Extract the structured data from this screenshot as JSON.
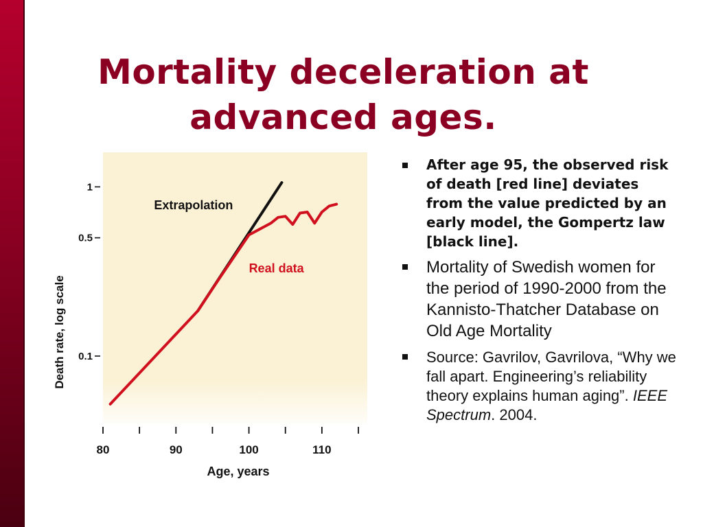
{
  "slide": {
    "title_line1": "Mortality deceleration at",
    "title_line2": "advanced ages.",
    "accent_color": "#8b0022",
    "sidebar_color": "#a0002a"
  },
  "bullets": [
    {
      "text": "After age 95, the observed risk of death [red line] deviates from the value predicted by an early model, the Gompertz law [black line]."
    },
    {
      "text": "Mortality of Swedish women for the period of 1990-2000 from the Kannisto-Thatcher Database on Old Age Mortality"
    },
    {
      "prefix": "Source: Gavrilov, Gavrilova, “Why we fall apart. Engineering’s reliability theory explains human aging”. ",
      "journal": "IEEE Spectrum",
      "suffix": ". 2004."
    }
  ],
  "chart_data": {
    "type": "line",
    "xlabel": "Age, years",
    "ylabel": "Death rate, log scale",
    "y_scale": "log",
    "xlim": [
      80,
      115
    ],
    "ylim": [
      0.04,
      1.6
    ],
    "x_ticks": [
      80,
      85,
      90,
      95,
      100,
      105,
      110,
      115
    ],
    "x_tick_labels": [
      {
        "value": 80,
        "label": "80"
      },
      {
        "value": 90,
        "label": "90"
      },
      {
        "value": 100,
        "label": "100"
      },
      {
        "value": 110,
        "label": "110"
      }
    ],
    "y_ticks": [
      {
        "value": 1,
        "label": "1"
      },
      {
        "value": 0.5,
        "label": "0.5"
      },
      {
        "value": 0.1,
        "label": "0.1"
      }
    ],
    "background_color": "#fbf1d4",
    "series": [
      {
        "name": "Extrapolation",
        "color": "#111111",
        "x": [
          93,
          104.5
        ],
        "y": [
          0.185,
          1.06
        ],
        "label_at": [
          87,
          0.78
        ]
      },
      {
        "name": "Real data",
        "color": "#d0101e",
        "x": [
          81,
          93,
          96,
          100,
          103,
          104,
          105,
          106,
          107,
          108,
          109,
          110,
          111,
          112
        ],
        "y": [
          0.052,
          0.185,
          0.29,
          0.52,
          0.61,
          0.66,
          0.67,
          0.6,
          0.7,
          0.71,
          0.61,
          0.71,
          0.77,
          0.79
        ],
        "label_at": [
          100,
          0.33
        ]
      }
    ]
  }
}
